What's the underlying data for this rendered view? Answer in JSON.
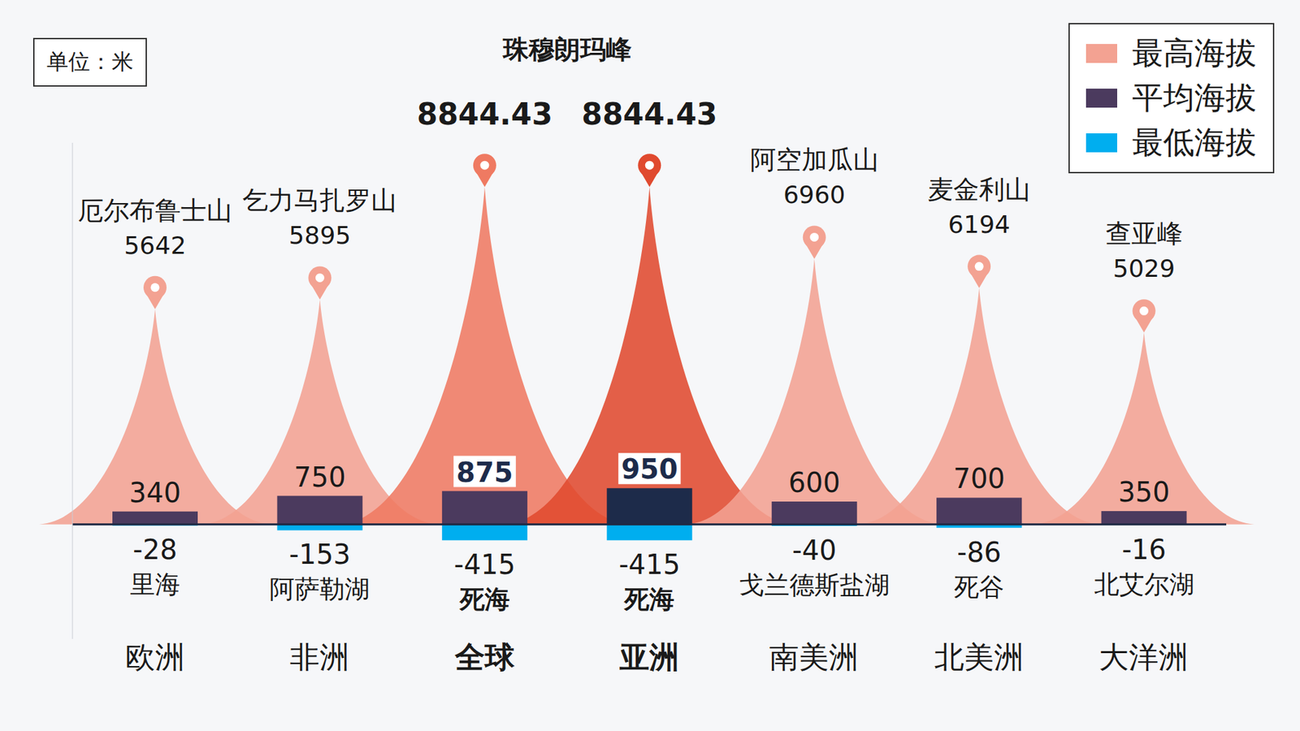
{
  "chart_data": {
    "type": "bar",
    "unit_label": "单位：米",
    "categories": [
      "欧洲",
      "非洲",
      "全球",
      "亚洲",
      "南美洲",
      "北美洲",
      "大洋洲"
    ],
    "series": [
      {
        "name": "最高海拔",
        "colors": [
          "#F3A292",
          "#F3A292",
          "#EF7A62",
          "#E04A2F",
          "#F3A292",
          "#F3A292",
          "#F3A292"
        ],
        "values": [
          5642,
          5895,
          8844.43,
          8844.43,
          6960,
          6194,
          5029
        ],
        "point_labels": [
          "厄尔布鲁士山",
          "乞力马扎罗山",
          "珠穆朗玛峰",
          "珠穆朗玛峰",
          "阿空加瓜山",
          "麦金利山",
          "查亚峰"
        ]
      },
      {
        "name": "平均海拔",
        "colors": [
          "#4B3A5E",
          "#4B3A5E",
          "#4B3A5E",
          "#1D2B4A",
          "#4B3A5E",
          "#4B3A5E",
          "#4B3A5E"
        ],
        "values": [
          340,
          750,
          875,
          950,
          600,
          700,
          350
        ]
      },
      {
        "name": "最低海拔",
        "color": "#00AEEF",
        "values": [
          -28,
          -153,
          -415,
          -415,
          -40,
          -86,
          -16
        ],
        "point_labels": [
          "里海",
          "阿萨勒湖",
          "死海",
          "死海",
          "戈兰德斯盐湖",
          "死谷",
          "北艾尔湖"
        ]
      }
    ],
    "ylim": [
      -3000,
      10000
    ],
    "yticks": [
      0
    ],
    "tick_labels": "x",
    "stacked": true,
    "data_labels": true,
    "legend": "top-right",
    "grid": false
  }
}
